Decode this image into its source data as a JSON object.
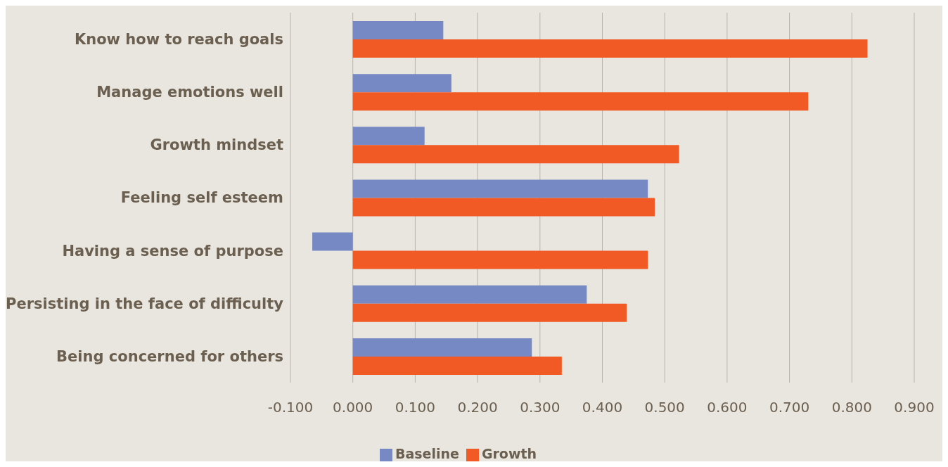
{
  "chart_data": {
    "type": "bar",
    "orientation": "horizontal",
    "categories": [
      "Know how to reach goals",
      "Manage emotions well",
      "Growth mindset",
      "Feeling self esteem",
      "Having a sense of purpose",
      "Persisting in the face of difficulty",
      "Being concerned for others"
    ],
    "series": [
      {
        "name": "Baseline",
        "color": "#7789c4",
        "values": [
          0.145,
          0.158,
          0.115,
          0.473,
          -0.065,
          0.375,
          0.287
        ]
      },
      {
        "name": "Growth",
        "color": "#f15a24",
        "values": [
          0.825,
          0.73,
          0.523,
          0.484,
          0.473,
          0.439,
          0.335
        ]
      }
    ],
    "xlim": [
      -0.1,
      0.9
    ],
    "xticks": [
      {
        "value": -0.1,
        "label": "-0.100"
      },
      {
        "value": 0,
        "label": "0.000"
      },
      {
        "value": 0.1,
        "label": "0.100"
      },
      {
        "value": 0.2,
        "label": "0.200"
      },
      {
        "value": 0.3,
        "label": "0.300"
      },
      {
        "value": 0.4,
        "label": "0.400"
      },
      {
        "value": 0.5,
        "label": "0.500"
      },
      {
        "value": 0.6,
        "label": "0.600"
      },
      {
        "value": 0.7,
        "label": "0.700"
      },
      {
        "value": 0.8,
        "label": "0.800"
      },
      {
        "value": 0.9,
        "label": "0.900"
      }
    ],
    "grid": "x",
    "legend": "bottom"
  }
}
